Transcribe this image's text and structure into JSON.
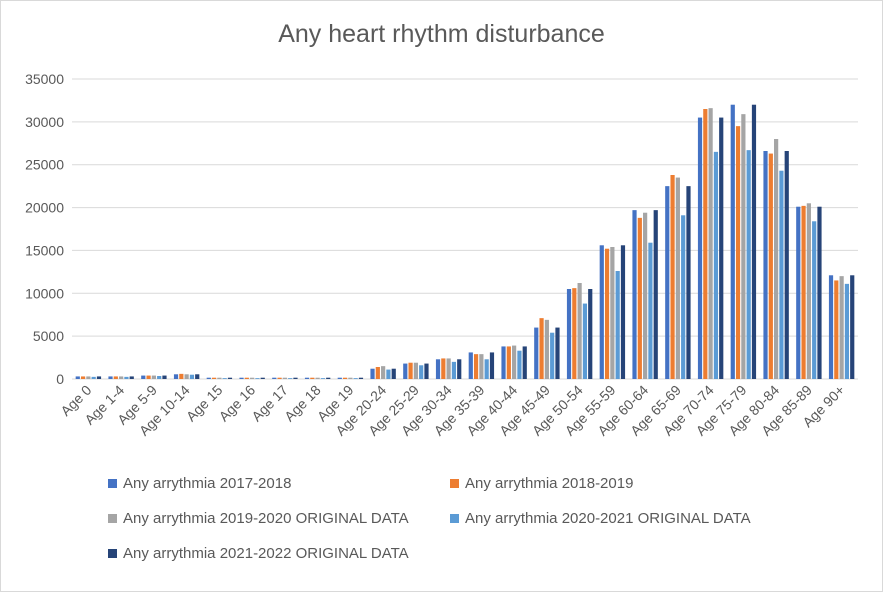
{
  "chart_data": {
    "type": "bar",
    "title": "Any heart rhythm disturbance",
    "xlabel": "",
    "ylabel": "",
    "ylim": [
      0,
      35000
    ],
    "yticks": [
      "0",
      "5000",
      "10000",
      "15000",
      "20000",
      "25000",
      "30000",
      "35000"
    ],
    "grid": true,
    "legend_position": "bottom",
    "categories": [
      "Age 0",
      "Age 1-4",
      "Age 5-9",
      "Age 10-14",
      "Age 15",
      "Age 16",
      "Age 17",
      "Age 18",
      "Age 19",
      "Age 20-24",
      "Age 25-29",
      "Age 30-34",
      "Age 35-39",
      "Age 40-44",
      "Age 45-49",
      "Age 50-54",
      "Age 55-59",
      "Age 60-64",
      "Age 65-69",
      "Age 70-74",
      "Age 75-79",
      "Age 80-84",
      "Age 85-89",
      "Age 90+"
    ],
    "series": [
      {
        "name": "Any arrythmia 2017-2018",
        "color": "#4472c4",
        "values": [
          300,
          300,
          400,
          550,
          150,
          150,
          150,
          150,
          150,
          1200,
          1800,
          2300,
          3100,
          3800,
          6000,
          10500,
          15600,
          19700,
          22500,
          30500,
          32000,
          26600,
          20100,
          12100
        ]
      },
      {
        "name": "Any arrythmia 2018-2019",
        "color": "#ed7d31",
        "values": [
          300,
          300,
          400,
          600,
          150,
          150,
          150,
          150,
          150,
          1400,
          1900,
          2400,
          2900,
          3800,
          7100,
          10600,
          15200,
          18800,
          23800,
          31500,
          29500,
          26300,
          20200,
          11500
        ]
      },
      {
        "name": "Any arrythmia 2019-2020 ORIGINAL DATA",
        "color": "#a5a5a5",
        "values": [
          300,
          300,
          400,
          550,
          150,
          150,
          150,
          150,
          150,
          1500,
          1900,
          2400,
          2900,
          3900,
          6900,
          11200,
          15400,
          19400,
          23500,
          31600,
          30900,
          28000,
          20500,
          12000
        ]
      },
      {
        "name": "Any arrythmia 2020-2021 ORIGINAL DATA",
        "color": "#5b9bd5",
        "values": [
          250,
          250,
          350,
          500,
          100,
          100,
          100,
          100,
          100,
          1100,
          1600,
          2000,
          2300,
          3300,
          5400,
          8800,
          12600,
          15900,
          19100,
          26500,
          26700,
          24300,
          18400,
          11100
        ]
      },
      {
        "name": "Any arrythmia 2021-2022 ORIGINAL DATA",
        "color": "#264478",
        "values": [
          300,
          300,
          400,
          550,
          150,
          150,
          150,
          150,
          150,
          1200,
          1800,
          2300,
          3100,
          3800,
          6000,
          10500,
          15600,
          19700,
          22500,
          30500,
          32000,
          26600,
          20100,
          12100
        ]
      }
    ]
  }
}
